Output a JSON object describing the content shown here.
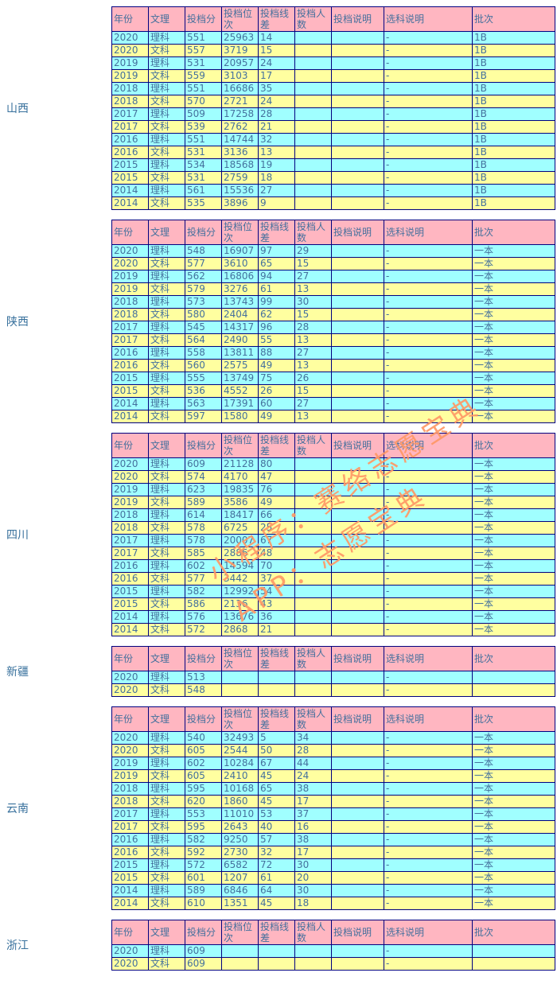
{
  "columns": [
    "年份",
    "文理",
    "投档分",
    "投档位次",
    "投档线差",
    "投档人数",
    "投档说明",
    "选科说明",
    "批次"
  ],
  "colors": {
    "header_bg": "#ffb6c1",
    "row_science_bg": "#a0ffff",
    "row_arts_bg": "#ffffa0",
    "border": "#000080",
    "cell_text": "#44709d",
    "province_text": "#37709c",
    "watermark_text": "#ff9866"
  },
  "watermark": {
    "line1": "小程序：赛络志愿宝典",
    "line2": "APP：志愿宝典"
  },
  "sections": [
    {
      "province": "山西",
      "rows": [
        [
          "2020",
          "理科",
          "551",
          "25963",
          "14",
          "",
          "",
          "-",
          "1B"
        ],
        [
          "2020",
          "文科",
          "557",
          "3719",
          "15",
          "",
          "",
          "-",
          "1B"
        ],
        [
          "2019",
          "理科",
          "531",
          "20957",
          "24",
          "",
          "",
          "-",
          "1B"
        ],
        [
          "2019",
          "文科",
          "559",
          "3103",
          "17",
          "",
          "",
          "-",
          "1B"
        ],
        [
          "2018",
          "理科",
          "551",
          "16686",
          "35",
          "",
          "",
          "-",
          "1B"
        ],
        [
          "2018",
          "文科",
          "570",
          "2721",
          "24",
          "",
          "",
          "-",
          "1B"
        ],
        [
          "2017",
          "理科",
          "509",
          "17258",
          "28",
          "",
          "",
          "-",
          "1B"
        ],
        [
          "2017",
          "文科",
          "539",
          "2762",
          "21",
          "",
          "",
          "-",
          "1B"
        ],
        [
          "2016",
          "理科",
          "551",
          "14744",
          "32",
          "",
          "",
          "-",
          "1B"
        ],
        [
          "2016",
          "文科",
          "531",
          "3136",
          "13",
          "",
          "",
          "-",
          "1B"
        ],
        [
          "2015",
          "理科",
          "534",
          "18568",
          "19",
          "",
          "",
          "-",
          "1B"
        ],
        [
          "2015",
          "文科",
          "531",
          "2759",
          "18",
          "",
          "",
          "-",
          "1B"
        ],
        [
          "2014",
          "理科",
          "561",
          "15536",
          "27",
          "",
          "",
          "-",
          "1B"
        ],
        [
          "2014",
          "文科",
          "535",
          "3896",
          "9",
          "",
          "",
          "-",
          "1B"
        ]
      ]
    },
    {
      "province": "陕西",
      "rows": [
        [
          "2020",
          "理科",
          "548",
          "16907",
          "97",
          "29",
          "",
          "-",
          "一本"
        ],
        [
          "2020",
          "文科",
          "577",
          "3610",
          "65",
          "15",
          "",
          "-",
          "一本"
        ],
        [
          "2019",
          "理科",
          "562",
          "16806",
          "94",
          "27",
          "",
          "-",
          "一本"
        ],
        [
          "2019",
          "文科",
          "579",
          "3276",
          "61",
          "13",
          "",
          "-",
          "一本"
        ],
        [
          "2018",
          "理科",
          "573",
          "13743",
          "99",
          "30",
          "",
          "-",
          "一本"
        ],
        [
          "2018",
          "文科",
          "580",
          "2404",
          "62",
          "15",
          "",
          "-",
          "一本"
        ],
        [
          "2017",
          "理科",
          "545",
          "14317",
          "96",
          "28",
          "",
          "-",
          "一本"
        ],
        [
          "2017",
          "文科",
          "564",
          "2490",
          "55",
          "13",
          "",
          "-",
          "一本"
        ],
        [
          "2016",
          "理科",
          "558",
          "13811",
          "88",
          "27",
          "",
          "-",
          "一本"
        ],
        [
          "2016",
          "文科",
          "560",
          "2575",
          "49",
          "13",
          "",
          "-",
          "一本"
        ],
        [
          "2015",
          "理科",
          "555",
          "13749",
          "75",
          "26",
          "",
          "-",
          "一本"
        ],
        [
          "2015",
          "文科",
          "536",
          "4552",
          "26",
          "15",
          "",
          "-",
          "一本"
        ],
        [
          "2014",
          "理科",
          "563",
          "17391",
          "60",
          "27",
          "",
          "-",
          "一本"
        ],
        [
          "2014",
          "文科",
          "597",
          "1580",
          "49",
          "13",
          "",
          "-",
          "一本"
        ]
      ]
    },
    {
      "province": "四川",
      "rows": [
        [
          "2020",
          "理科",
          "609",
          "21128",
          "80",
          "",
          "",
          "-",
          "一本"
        ],
        [
          "2020",
          "文科",
          "574",
          "4170",
          "47",
          "",
          "",
          "-",
          "一本"
        ],
        [
          "2019",
          "理科",
          "623",
          "19835",
          "76",
          "",
          "",
          "-",
          "一本"
        ],
        [
          "2019",
          "文科",
          "589",
          "3586",
          "49",
          "",
          "",
          "-",
          "一本"
        ],
        [
          "2018",
          "理科",
          "614",
          "18417",
          "66",
          "",
          "",
          "-",
          "一本"
        ],
        [
          "2018",
          "文科",
          "578",
          "6725",
          "25",
          "",
          "",
          "-",
          "一本"
        ],
        [
          "2017",
          "理科",
          "578",
          "20007",
          "67",
          "",
          "",
          "-",
          "一本"
        ],
        [
          "2017",
          "文科",
          "585",
          "2886",
          "48",
          "",
          "",
          "-",
          "一本"
        ],
        [
          "2016",
          "理科",
          "602",
          "14594",
          "70",
          "",
          "",
          "-",
          "一本"
        ],
        [
          "2016",
          "文科",
          "577",
          "3442",
          "37",
          "",
          "",
          "-",
          "一本"
        ],
        [
          "2015",
          "理科",
          "582",
          "12992",
          "54",
          "",
          "",
          "-",
          "一本"
        ],
        [
          "2015",
          "文科",
          "586",
          "2136",
          "43",
          "",
          "",
          "-",
          "一本"
        ],
        [
          "2014",
          "理科",
          "576",
          "13676",
          "36",
          "",
          "",
          "-",
          "一本"
        ],
        [
          "2014",
          "文科",
          "572",
          "2868",
          "21",
          "",
          "",
          "-",
          "一本"
        ]
      ]
    },
    {
      "province": "新疆",
      "rows": [
        [
          "2020",
          "理科",
          "513",
          "",
          "",
          "",
          "",
          "-",
          ""
        ],
        [
          "2020",
          "文科",
          "548",
          "",
          "",
          "",
          "",
          "-",
          ""
        ]
      ]
    },
    {
      "province": "云南",
      "rows": [
        [
          "2020",
          "理科",
          "540",
          "32493",
          "5",
          "34",
          "",
          "-",
          "一本"
        ],
        [
          "2020",
          "文科",
          "605",
          "2544",
          "50",
          "28",
          "",
          "-",
          "一本"
        ],
        [
          "2019",
          "理科",
          "602",
          "10284",
          "67",
          "44",
          "",
          "-",
          "一本"
        ],
        [
          "2019",
          "文科",
          "605",
          "2410",
          "45",
          "24",
          "",
          "-",
          "一本"
        ],
        [
          "2018",
          "理科",
          "595",
          "10168",
          "65",
          "38",
          "",
          "-",
          "一本"
        ],
        [
          "2018",
          "文科",
          "620",
          "1860",
          "45",
          "17",
          "",
          "-",
          "一本"
        ],
        [
          "2017",
          "理科",
          "553",
          "11010",
          "53",
          "37",
          "",
          "-",
          "一本"
        ],
        [
          "2017",
          "文科",
          "595",
          "2643",
          "40",
          "16",
          "",
          "-",
          "一本"
        ],
        [
          "2016",
          "理科",
          "582",
          "9250",
          "57",
          "38",
          "",
          "-",
          "一本"
        ],
        [
          "2016",
          "文科",
          "592",
          "2730",
          "32",
          "17",
          "",
          "-",
          "一本"
        ],
        [
          "2015",
          "理科",
          "572",
          "6582",
          "72",
          "30",
          "",
          "-",
          "一本"
        ],
        [
          "2015",
          "文科",
          "601",
          "1207",
          "61",
          "20",
          "",
          "-",
          "一本"
        ],
        [
          "2014",
          "理科",
          "589",
          "6846",
          "64",
          "30",
          "",
          "-",
          "一本"
        ],
        [
          "2014",
          "文科",
          "610",
          "1351",
          "45",
          "18",
          "",
          "-",
          "一本"
        ]
      ]
    },
    {
      "province": "浙江",
      "rows": [
        [
          "2020",
          "理科",
          "609",
          "",
          "",
          "",
          "",
          "-",
          ""
        ],
        [
          "2020",
          "文科",
          "609",
          "",
          "",
          "",
          "",
          "-",
          ""
        ]
      ]
    }
  ]
}
